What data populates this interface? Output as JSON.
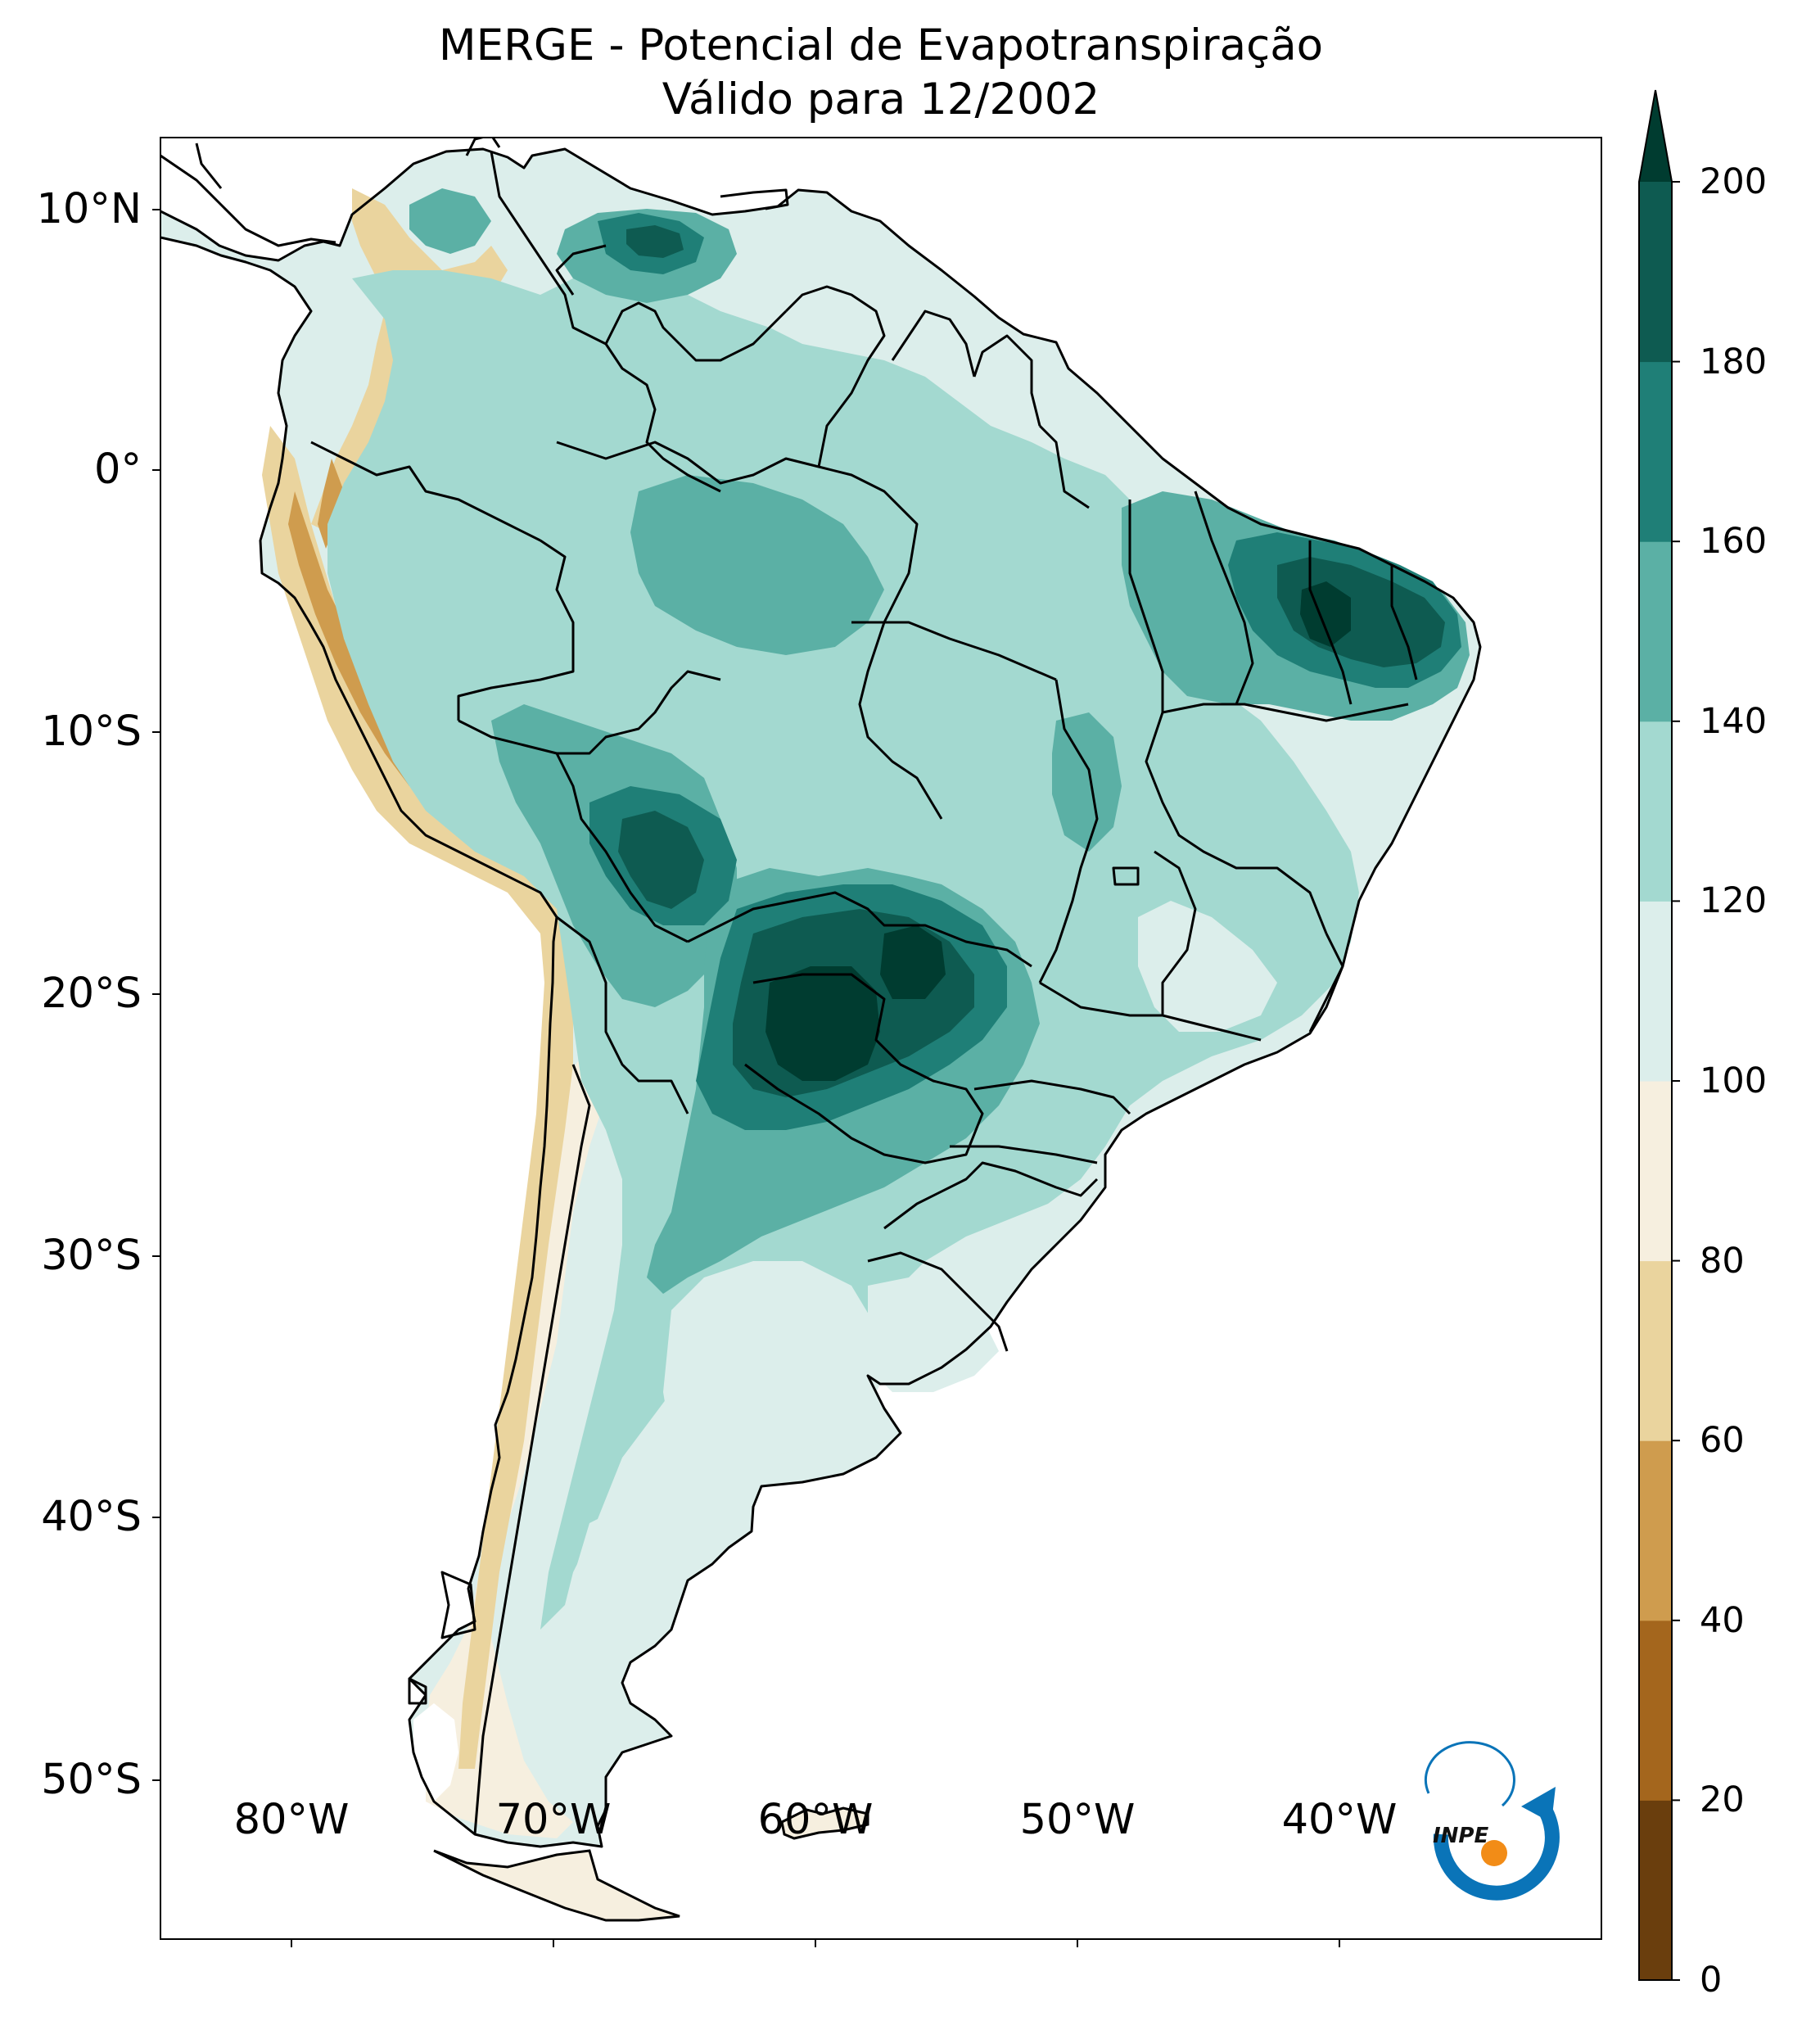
{
  "title": {
    "line1": "MERGE - Potencial de Evapotranspiração",
    "line2": "Válido para 12/2002"
  },
  "map": {
    "variable": "Potencial de Evapotranspiração",
    "source": "MERGE",
    "period": "12/2002",
    "region": "South America",
    "extent_lon": [
      -85,
      -30
    ],
    "extent_lat": [
      -56,
      13
    ],
    "lat_ticks": [
      {
        "value": 10,
        "label": "10°N"
      },
      {
        "value": 0,
        "label": "0°"
      },
      {
        "value": -10,
        "label": "10°S"
      },
      {
        "value": -20,
        "label": "20°S"
      },
      {
        "value": -30,
        "label": "30°S"
      },
      {
        "value": -40,
        "label": "40°S"
      },
      {
        "value": -50,
        "label": "50°S"
      }
    ],
    "lon_ticks": [
      {
        "value": -80,
        "label": "80°W"
      },
      {
        "value": -70,
        "label": "70°W"
      },
      {
        "value": -60,
        "label": "60°W"
      },
      {
        "value": -50,
        "label": "50°W"
      },
      {
        "value": -40,
        "label": "40°W"
      }
    ]
  },
  "colorbar": {
    "min": 0,
    "max": 200,
    "extend": "max",
    "ticks": [
      "0",
      "20",
      "40",
      "60",
      "80",
      "100",
      "120",
      "140",
      "160",
      "180",
      "200"
    ],
    "colors": [
      "#6a3e0d",
      "#a4661d",
      "#cf9c4e",
      "#ead49e",
      "#f6efdf",
      "#dceeeb",
      "#a3d9d0",
      "#5bb0a5",
      "#1f7f77",
      "#0e5b51"
    ],
    "extend_color": "#003c30"
  },
  "logo": {
    "text": "INPE",
    "ring_color": "#0a74b8",
    "dot_color": "#f28c17"
  }
}
